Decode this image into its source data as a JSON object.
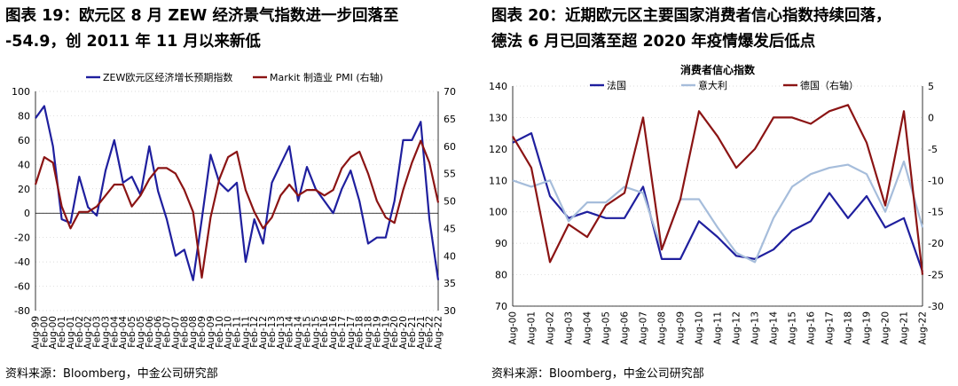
{
  "left": {
    "title": "图表 19：欧元区 8 月 ZEW 经济景气指数进一步回落至\n-54.9，创 2011 年 11 月以来新低",
    "source": "资料来源：Bloomberg，中金公司研究部",
    "chart_data": {
      "type": "line",
      "title": "",
      "ylim": [
        -80,
        100
      ],
      "ylim_right": [
        30,
        70
      ],
      "yticks_left": [
        "100",
        "80",
        "60",
        "40",
        "20",
        "0",
        "-20",
        "-40",
        "-60",
        "-80"
      ],
      "yticks_right": [
        "70",
        "65",
        "60",
        "55",
        "50",
        "45",
        "40",
        "35",
        "30"
      ],
      "x_categories": [
        "Aug-99",
        "Feb-00",
        "Aug-00",
        "Feb-01",
        "Aug-01",
        "Feb-02",
        "Aug-02",
        "Feb-03",
        "Aug-03",
        "Feb-04",
        "Aug-04",
        "Feb-05",
        "Aug-05",
        "Feb-06",
        "Aug-06",
        "Feb-07",
        "Aug-07",
        "Feb-08",
        "Aug-08",
        "Feb-09",
        "Aug-09",
        "Feb-10",
        "Aug-10",
        "Feb-11",
        "Aug-11",
        "Feb-12",
        "Aug-12",
        "Feb-13",
        "Aug-13",
        "Feb-14",
        "Aug-14",
        "Feb-15",
        "Aug-15",
        "Feb-16",
        "Aug-16",
        "Feb-17",
        "Aug-17",
        "Feb-18",
        "Aug-18",
        "Feb-19",
        "Aug-19",
        "Feb-20",
        "Aug-20",
        "Feb-21",
        "Aug-21",
        "Feb-22",
        "Aug-22"
      ],
      "series": [
        {
          "name": "ZEW欧元区经济增长预期指数",
          "axis": "left",
          "color": "#1f1f9e",
          "values": [
            78,
            88,
            55,
            -5,
            -8,
            30,
            5,
            -2,
            35,
            60,
            25,
            30,
            15,
            55,
            18,
            -5,
            -35,
            -30,
            -55,
            -5,
            48,
            25,
            18,
            25,
            -40,
            -5,
            -25,
            25,
            40,
            55,
            10,
            38,
            20,
            10,
            0,
            20,
            35,
            10,
            -25,
            -20,
            -20,
            10,
            60,
            60,
            75,
            -5,
            -54.9
          ]
        },
        {
          "name": "Markit 制造业 PMI (右轴)",
          "axis": "right",
          "color": "#8b1414",
          "values": [
            53,
            58,
            57,
            49,
            45,
            48,
            48,
            49,
            51,
            53,
            53,
            49,
            51,
            54,
            56,
            56,
            55,
            52,
            48,
            36,
            47,
            54,
            58,
            59,
            52,
            48,
            45,
            47,
            51,
            53,
            51,
            52,
            52,
            51,
            52,
            56,
            58,
            59,
            55,
            50,
            47,
            46,
            52,
            57,
            61,
            57,
            49.7
          ]
        }
      ]
    },
    "legend": [
      {
        "label": "ZEW欧元区经济增长预期指数",
        "color": "#1f1f9e"
      },
      {
        "label": "Markit 制造业 PMI (右轴)",
        "color": "#8b1414"
      }
    ]
  },
  "right": {
    "title": "图表 20：近期欧元区主要国家消费者信心指数持续回落，\n德法 6 月已回落至超 2020 年疫情爆发后低点",
    "source": "资料来源：Bloomberg，中金公司研究部",
    "chart_inner_title": "消费者信心指数",
    "chart_data": {
      "type": "line",
      "title": "消费者信心指数",
      "ylim": [
        70,
        140
      ],
      "ylim_right": [
        -30,
        5
      ],
      "yticks_left": [
        "140",
        "130",
        "120",
        "110",
        "100",
        "90",
        "80",
        "70"
      ],
      "yticks_right": [
        "5",
        "0",
        "-5",
        "-10",
        "-15",
        "-20",
        "-25",
        "-30"
      ],
      "x_categories": [
        "Aug-00",
        "Aug-01",
        "Aug-02",
        "Aug-03",
        "Aug-04",
        "Aug-05",
        "Aug-06",
        "Aug-07",
        "Aug-08",
        "Aug-09",
        "Aug-10",
        "Aug-11",
        "Aug-12",
        "Aug-13",
        "Aug-14",
        "Aug-15",
        "Aug-16",
        "Aug-17",
        "Aug-18",
        "Aug-19",
        "Aug-20",
        "Aug-21",
        "Aug-22"
      ],
      "series": [
        {
          "name": "法国",
          "axis": "left",
          "color": "#1f1f9e",
          "values": [
            122,
            125,
            105,
            98,
            100,
            98,
            98,
            108,
            85,
            85,
            97,
            92,
            86,
            85,
            88,
            94,
            97,
            106,
            98,
            105,
            95,
            98,
            81
          ]
        },
        {
          "name": "意大利",
          "axis": "left",
          "color": "#a6bddb",
          "values": [
            110,
            108,
            110,
            97,
            103,
            103,
            108,
            106,
            88,
            104,
            104,
            95,
            87,
            84,
            98,
            108,
            112,
            114,
            115,
            112,
            100,
            116,
            95
          ]
        },
        {
          "name": "德国（右轴）",
          "axis": "right",
          "color": "#8b1414",
          "values": [
            -3,
            -8,
            -23,
            -17,
            -19,
            -14,
            -12,
            0,
            -21,
            -13,
            1,
            -3,
            -8,
            -5,
            0,
            0,
            -1,
            1,
            2,
            -4,
            -14,
            1,
            -25
          ]
        }
      ]
    },
    "legend": [
      {
        "label": "法国",
        "color": "#1f1f9e"
      },
      {
        "label": "意大利",
        "color": "#a6bddb"
      },
      {
        "label": "德国（右轴）",
        "color": "#8b1414"
      }
    ]
  }
}
